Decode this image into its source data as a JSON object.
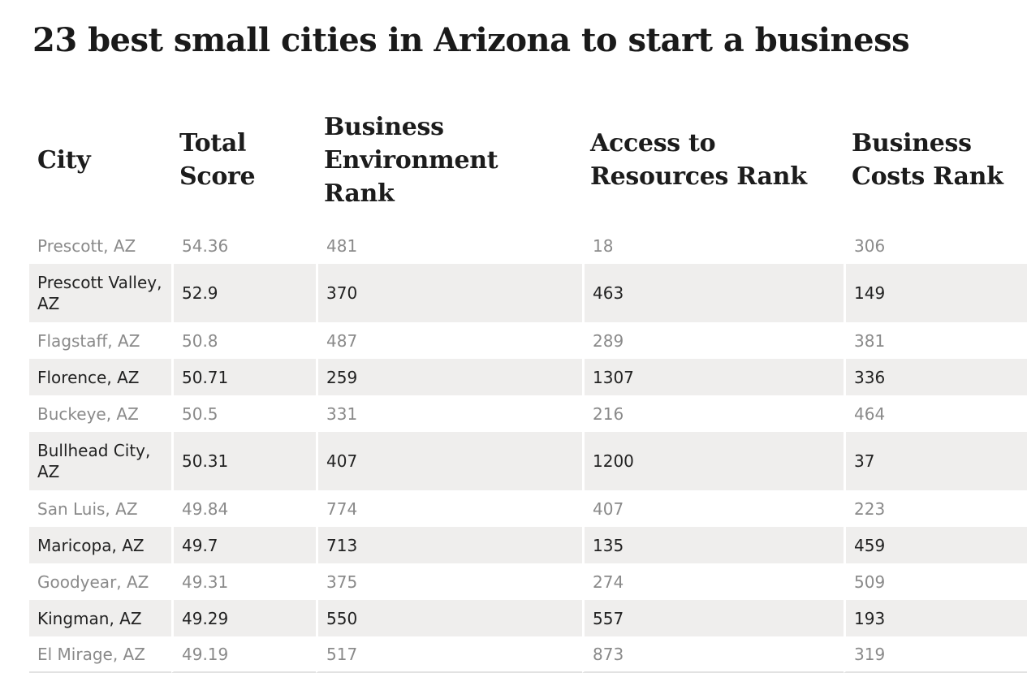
{
  "title": "23 best small cities in Arizona to start a business",
  "table": {
    "headers": [
      "City",
      "Total Score",
      "Business Environment Rank",
      "Access to Resources Rank",
      "Business Costs Rank"
    ],
    "rows": [
      [
        "Prescott, AZ",
        "54.36",
        "481",
        "18",
        "306"
      ],
      [
        "Prescott Valley, AZ",
        "52.9",
        "370",
        "463",
        "149"
      ],
      [
        "Flagstaff, AZ",
        "50.8",
        "487",
        "289",
        "381"
      ],
      [
        "Florence, AZ",
        "50.71",
        "259",
        "1307",
        "336"
      ],
      [
        "Buckeye, AZ",
        "50.5",
        "331",
        "216",
        "464"
      ],
      [
        "Bullhead City, AZ",
        "50.31",
        "407",
        "1200",
        "37"
      ],
      [
        "San Luis, AZ",
        "49.84",
        "774",
        "407",
        "223"
      ],
      [
        "Maricopa, AZ",
        "49.7",
        "713",
        "135",
        "459"
      ],
      [
        "Goodyear, AZ",
        "49.31",
        "375",
        "274",
        "509"
      ],
      [
        "Kingman, AZ",
        "49.29",
        "550",
        "557",
        "193"
      ],
      [
        "El Mirage, AZ",
        "49.19",
        "517",
        "873",
        "319"
      ]
    ]
  },
  "colors": {
    "title_text": "#1a1a1a",
    "header_text": "#1c1c1c",
    "row_alt_background": "#efeeed",
    "row_background": "#ffffff",
    "muted_text": "#8a8a8a",
    "dark_text": "#222222"
  }
}
